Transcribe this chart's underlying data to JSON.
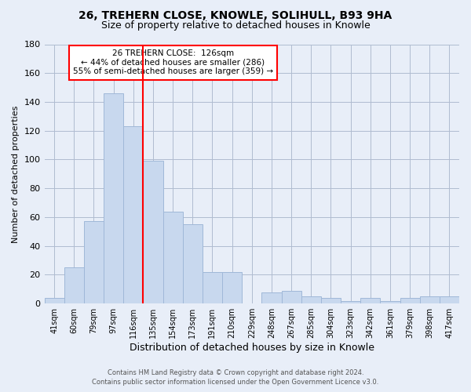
{
  "title": "26, TREHERN CLOSE, KNOWLE, SOLIHULL, B93 9HA",
  "subtitle": "Size of property relative to detached houses in Knowle",
  "xlabel": "Distribution of detached houses by size in Knowle",
  "ylabel": "Number of detached properties",
  "bar_labels": [
    "41sqm",
    "60sqm",
    "79sqm",
    "97sqm",
    "116sqm",
    "135sqm",
    "154sqm",
    "173sqm",
    "191sqm",
    "210sqm",
    "229sqm",
    "248sqm",
    "267sqm",
    "285sqm",
    "304sqm",
    "323sqm",
    "342sqm",
    "361sqm",
    "379sqm",
    "398sqm",
    "417sqm"
  ],
  "bar_values": [
    4,
    25,
    57,
    146,
    123,
    99,
    64,
    55,
    22,
    22,
    0,
    8,
    9,
    5,
    4,
    2,
    4,
    2,
    4,
    5,
    5
  ],
  "bar_color": "#c8d8ee",
  "bar_edge_color": "#a0b8d8",
  "vline_x_index": 4.5,
  "vline_color": "red",
  "ylim": [
    0,
    180
  ],
  "yticks": [
    0,
    20,
    40,
    60,
    80,
    100,
    120,
    140,
    160,
    180
  ],
  "annotation_box": {
    "title": "26 TREHERN CLOSE:  126sqm",
    "line1": "← 44% of detached houses are smaller (286)",
    "line2": "55% of semi-detached houses are larger (359) →"
  },
  "footer_line1": "Contains HM Land Registry data © Crown copyright and database right 2024.",
  "footer_line2": "Contains public sector information licensed under the Open Government Licence v3.0.",
  "background_color": "#e8eef8",
  "plot_background_color": "#e8eef8",
  "grid_color": "#b0bcd0"
}
